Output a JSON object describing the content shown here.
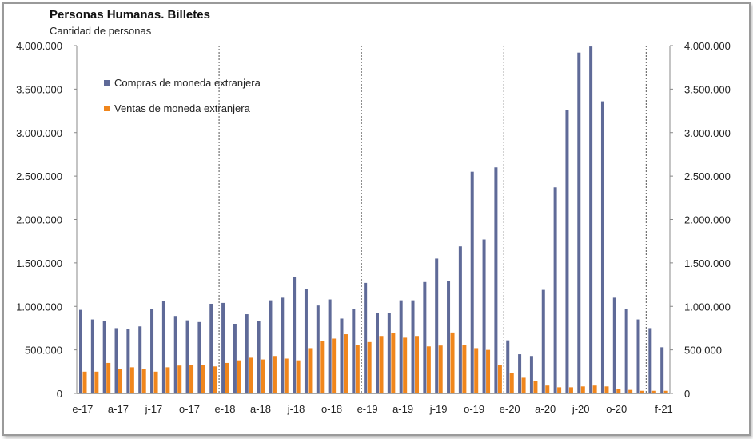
{
  "chart_data": {
    "type": "bar",
    "title": "Personas Humanas. Billetes",
    "subtitle": "Cantidad de personas",
    "xlabel": "",
    "ylabel": "",
    "ylim": [
      0,
      4000000
    ],
    "yticks": [
      "0",
      "500.000",
      "1.000.000",
      "1.500.000",
      "2.000.000",
      "2.500.000",
      "3.000.000",
      "3.500.000",
      "4.000.000"
    ],
    "ytick_values": [
      0,
      500000,
      1000000,
      1500000,
      2000000,
      2500000,
      3000000,
      3500000,
      4000000
    ],
    "grid": false,
    "legend_position": "top-left",
    "categories": [
      "e-17",
      "f-17",
      "m-17",
      "a-17",
      "m-17",
      "j-17",
      "j-17",
      "a-17",
      "s-17",
      "o-17",
      "n-17",
      "d-17",
      "e-18",
      "f-18",
      "m-18",
      "a-18",
      "m-18",
      "j-18",
      "j-18",
      "a-18",
      "s-18",
      "o-18",
      "n-18",
      "d-18",
      "e-19",
      "f-19",
      "m-19",
      "a-19",
      "m-19",
      "j-19",
      "j-19",
      "a-19",
      "s-19",
      "o-19",
      "n-19",
      "d-19",
      "e-20",
      "f-20",
      "m-20",
      "a-20",
      "m-20",
      "j-20",
      "j-20",
      "a-20",
      "s-20",
      "o-20",
      "n-20",
      "d-20",
      "e-21",
      "f-21"
    ],
    "xtick_labels": [
      [
        0,
        "e-17"
      ],
      [
        3,
        "a-17"
      ],
      [
        6,
        "j-17"
      ],
      [
        9,
        "o-17"
      ],
      [
        12,
        "e-18"
      ],
      [
        15,
        "a-18"
      ],
      [
        18,
        "j-18"
      ],
      [
        21,
        "o-18"
      ],
      [
        24,
        "e-19"
      ],
      [
        27,
        "a-19"
      ],
      [
        30,
        "j-19"
      ],
      [
        33,
        "o-19"
      ],
      [
        36,
        "e-20"
      ],
      [
        39,
        "a-20"
      ],
      [
        42,
        "j-20"
      ],
      [
        45,
        "o-20"
      ],
      [
        49,
        "f-21"
      ]
    ],
    "year_separators_before": [
      12,
      24,
      36,
      48
    ],
    "series": [
      {
        "name": "Compras de moneda extranjera",
        "color": "#5f6a98",
        "values": [
          960000,
          850000,
          830000,
          750000,
          740000,
          770000,
          970000,
          1060000,
          890000,
          840000,
          820000,
          1030000,
          1040000,
          800000,
          910000,
          830000,
          1070000,
          1100000,
          1340000,
          1200000,
          1010000,
          1080000,
          860000,
          970000,
          1270000,
          920000,
          920000,
          1070000,
          1070000,
          1280000,
          1550000,
          1290000,
          1690000,
          2550000,
          1770000,
          2600000,
          610000,
          450000,
          430000,
          1190000,
          2370000,
          3260000,
          3920000,
          3990000,
          3360000,
          1100000,
          970000,
          850000,
          750000,
          530000
        ]
      },
      {
        "name": "Ventas de moneda extranjera",
        "color": "#f0861c",
        "values": [
          250000,
          250000,
          350000,
          280000,
          300000,
          280000,
          250000,
          300000,
          320000,
          330000,
          330000,
          310000,
          350000,
          380000,
          410000,
          390000,
          430000,
          400000,
          380000,
          520000,
          600000,
          630000,
          680000,
          560000,
          590000,
          660000,
          690000,
          640000,
          660000,
          540000,
          550000,
          700000,
          560000,
          520000,
          500000,
          330000,
          230000,
          180000,
          140000,
          90000,
          70000,
          70000,
          80000,
          90000,
          80000,
          50000,
          40000,
          30000,
          30000,
          30000
        ]
      }
    ]
  }
}
